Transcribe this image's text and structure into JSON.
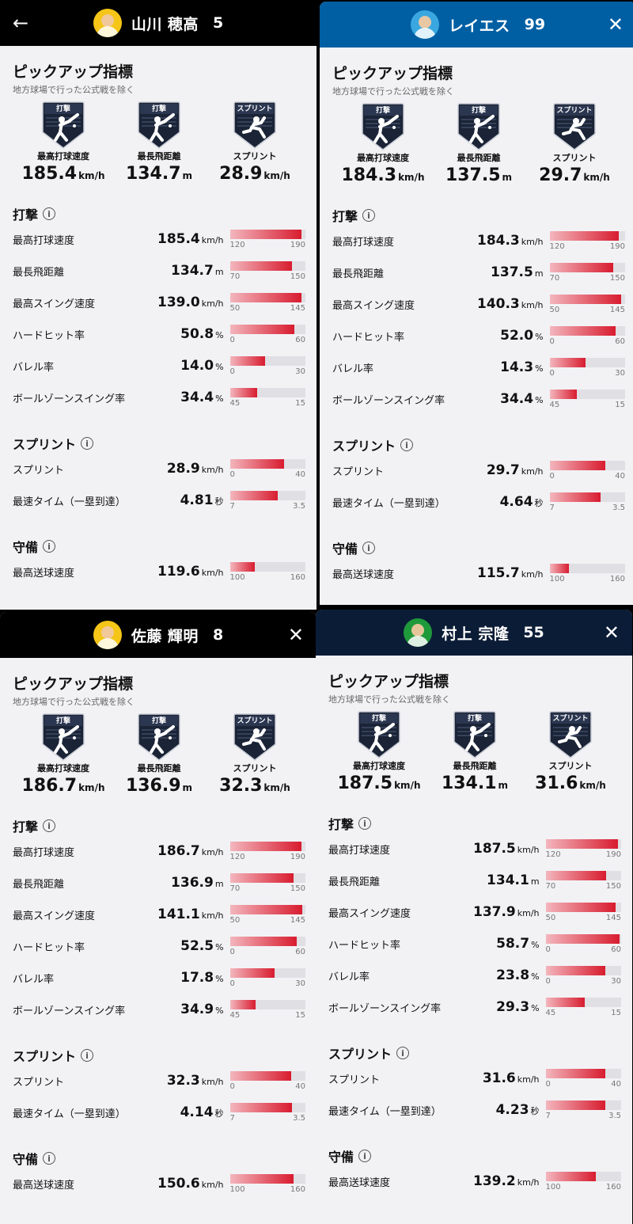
{
  "panels": [
    {
      "id": "p1",
      "header_bg": "#000000",
      "avatar_bg": "#f5c518",
      "left_icon": "←",
      "right_icon": "",
      "player_name": "山川 穂高",
      "player_number": "5",
      "pickup_title": "ピックアップ指標",
      "pickup_note": "地方球場で行った公式戦を除く",
      "pickups": [
        {
          "label": "最高打球速度",
          "value": "185.4",
          "unit": "km/h",
          "badge": "打撃",
          "icon": "batting-badge-icon"
        },
        {
          "label": "最長飛距離",
          "value": "134.7",
          "unit": "m",
          "badge": "打撃",
          "icon": "batting-badge-icon"
        },
        {
          "label": "スプリント",
          "value": "28.9",
          "unit": "km/h",
          "badge": "スプリント",
          "icon": "sprint-badge-icon"
        }
      ],
      "categories": [
        {
          "title": "打撃",
          "metrics": [
            {
              "label": "最高打球速度",
              "value": "185.4",
              "unit": "km/h",
              "min": "120",
              "max": "190",
              "fill": 0.95
            },
            {
              "label": "最長飛距離",
              "value": "134.7",
              "unit": "m",
              "min": "70",
              "max": "150",
              "fill": 0.82
            },
            {
              "label": "最高スイング速度",
              "value": "139.0",
              "unit": "km/h",
              "min": "50",
              "max": "145",
              "fill": 0.95
            },
            {
              "label": "ハードヒット率",
              "value": "50.8",
              "unit": "%",
              "min": "0",
              "max": "60",
              "fill": 0.85
            },
            {
              "label": "バレル率",
              "value": "14.0",
              "unit": "%",
              "min": "0",
              "max": "30",
              "fill": 0.47
            },
            {
              "label": "ボールゾーンスイング率",
              "value": "34.4",
              "unit": "%",
              "min": "45",
              "max": "15",
              "fill": 0.36
            }
          ]
        },
        {
          "title": "スプリント",
          "metrics": [
            {
              "label": "スプリント",
              "value": "28.9",
              "unit": "km/h",
              "min": "0",
              "max": "40",
              "fill": 0.72
            },
            {
              "label": "最速タイム（一塁到達）",
              "value": "4.81",
              "unit": "秒",
              "min": "7",
              "max": "3.5",
              "fill": 0.63
            }
          ]
        },
        {
          "title": "守備",
          "metrics": [
            {
              "label": "最高送球速度",
              "value": "119.6",
              "unit": "km/h",
              "min": "100",
              "max": "160",
              "fill": 0.33
            }
          ]
        }
      ]
    },
    {
      "id": "p2",
      "header_bg": "#005fa3",
      "avatar_bg": "#3aa7e0",
      "left_icon": "",
      "right_icon": "✕",
      "player_name": "レイエス",
      "player_number": "99",
      "pickup_title": "ピックアップ指標",
      "pickup_note": "地方球場で行った公式戦を除く",
      "pickups": [
        {
          "label": "最高打球速度",
          "value": "184.3",
          "unit": "km/h",
          "badge": "打撃",
          "icon": "batting-badge-icon"
        },
        {
          "label": "最長飛距離",
          "value": "137.5",
          "unit": "m",
          "badge": "打撃",
          "icon": "batting-badge-icon"
        },
        {
          "label": "スプリント",
          "value": "29.7",
          "unit": "km/h",
          "badge": "スプリント",
          "icon": "sprint-badge-icon"
        }
      ],
      "categories": [
        {
          "title": "打撃",
          "metrics": [
            {
              "label": "最高打球速度",
              "value": "184.3",
              "unit": "km/h",
              "min": "120",
              "max": "190",
              "fill": 0.92
            },
            {
              "label": "最長飛距離",
              "value": "137.5",
              "unit": "m",
              "min": "70",
              "max": "150",
              "fill": 0.84
            },
            {
              "label": "最高スイング速度",
              "value": "140.3",
              "unit": "km/h",
              "min": "50",
              "max": "145",
              "fill": 0.95
            },
            {
              "label": "ハードヒット率",
              "value": "52.0",
              "unit": "%",
              "min": "0",
              "max": "60",
              "fill": 0.87
            },
            {
              "label": "バレル率",
              "value": "14.3",
              "unit": "%",
              "min": "0",
              "max": "30",
              "fill": 0.48
            },
            {
              "label": "ボールゾーンスイング率",
              "value": "34.4",
              "unit": "%",
              "min": "45",
              "max": "15",
              "fill": 0.36
            }
          ]
        },
        {
          "title": "スプリント",
          "metrics": [
            {
              "label": "スプリント",
              "value": "29.7",
              "unit": "km/h",
              "min": "0",
              "max": "40",
              "fill": 0.74
            },
            {
              "label": "最速タイム（一塁到達）",
              "value": "4.64",
              "unit": "秒",
              "min": "7",
              "max": "3.5",
              "fill": 0.68
            }
          ]
        },
        {
          "title": "守備",
          "metrics": [
            {
              "label": "最高送球速度",
              "value": "115.7",
              "unit": "km/h",
              "min": "100",
              "max": "160",
              "fill": 0.26
            }
          ]
        }
      ]
    },
    {
      "id": "p3",
      "header_bg": "#000000",
      "avatar_bg": "#f5c518",
      "left_icon": "",
      "right_icon": "✕",
      "player_name": "佐藤 輝明",
      "player_number": "8",
      "pickup_title": "ピックアップ指標",
      "pickup_note": "地方球場で行った公式戦を除く",
      "pickups": [
        {
          "label": "最高打球速度",
          "value": "186.7",
          "unit": "km/h",
          "badge": "打撃",
          "icon": "batting-badge-icon"
        },
        {
          "label": "最長飛距離",
          "value": "136.9",
          "unit": "m",
          "badge": "打撃",
          "icon": "batting-badge-icon"
        },
        {
          "label": "スプリント",
          "value": "32.3",
          "unit": "km/h",
          "badge": "スプリント",
          "icon": "sprint-badge-icon"
        }
      ],
      "categories": [
        {
          "title": "打撃",
          "metrics": [
            {
              "label": "最高打球速度",
              "value": "186.7",
              "unit": "km/h",
              "min": "120",
              "max": "190",
              "fill": 0.95
            },
            {
              "label": "最長飛距離",
              "value": "136.9",
              "unit": "m",
              "min": "70",
              "max": "150",
              "fill": 0.84
            },
            {
              "label": "最高スイング速度",
              "value": "141.1",
              "unit": "km/h",
              "min": "50",
              "max": "145",
              "fill": 0.96
            },
            {
              "label": "ハードヒット率",
              "value": "52.5",
              "unit": "%",
              "min": "0",
              "max": "60",
              "fill": 0.88
            },
            {
              "label": "バレル率",
              "value": "17.8",
              "unit": "%",
              "min": "0",
              "max": "30",
              "fill": 0.59
            },
            {
              "label": "ボールゾーンスイング率",
              "value": "34.9",
              "unit": "%",
              "min": "45",
              "max": "15",
              "fill": 0.34
            }
          ]
        },
        {
          "title": "スプリント",
          "metrics": [
            {
              "label": "スプリント",
              "value": "32.3",
              "unit": "km/h",
              "min": "0",
              "max": "40",
              "fill": 0.81
            },
            {
              "label": "最速タイム（一塁到達）",
              "value": "4.14",
              "unit": "秒",
              "min": "7",
              "max": "3.5",
              "fill": 0.82
            }
          ]
        },
        {
          "title": "守備",
          "metrics": [
            {
              "label": "最高送球速度",
              "value": "150.6",
              "unit": "km/h",
              "min": "100",
              "max": "160",
              "fill": 0.84
            }
          ]
        }
      ]
    },
    {
      "id": "p4",
      "header_bg": "#0b1c36",
      "avatar_bg": "#1f9a3a",
      "left_icon": "",
      "right_icon": "✕",
      "player_name": "村上 宗隆",
      "player_number": "55",
      "pickup_title": "ピックアップ指標",
      "pickup_note": "地方球場で行った公式戦を除く",
      "pickups": [
        {
          "label": "最高打球速度",
          "value": "187.5",
          "unit": "km/h",
          "badge": "打撃",
          "icon": "batting-badge-icon"
        },
        {
          "label": "最長飛距離",
          "value": "134.1",
          "unit": "m",
          "badge": "打撃",
          "icon": "batting-badge-icon"
        },
        {
          "label": "スプリント",
          "value": "31.6",
          "unit": "km/h",
          "badge": "スプリント",
          "icon": "sprint-badge-icon"
        }
      ],
      "categories": [
        {
          "title": "打撃",
          "metrics": [
            {
              "label": "最高打球速度",
              "value": "187.5",
              "unit": "km/h",
              "min": "120",
              "max": "190",
              "fill": 0.96
            },
            {
              "label": "最長飛距離",
              "value": "134.1",
              "unit": "m",
              "min": "70",
              "max": "150",
              "fill": 0.8
            },
            {
              "label": "最高スイング速度",
              "value": "137.9",
              "unit": "km/h",
              "min": "50",
              "max": "145",
              "fill": 0.93
            },
            {
              "label": "ハードヒット率",
              "value": "58.7",
              "unit": "%",
              "min": "0",
              "max": "60",
              "fill": 0.98
            },
            {
              "label": "バレル率",
              "value": "23.8",
              "unit": "%",
              "min": "0",
              "max": "30",
              "fill": 0.79
            },
            {
              "label": "ボールゾーンスイング率",
              "value": "29.3",
              "unit": "%",
              "min": "45",
              "max": "15",
              "fill": 0.52
            }
          ]
        },
        {
          "title": "スプリント",
          "metrics": [
            {
              "label": "スプリント",
              "value": "31.6",
              "unit": "km/h",
              "min": "0",
              "max": "40",
              "fill": 0.79
            },
            {
              "label": "最速タイム（一塁到達）",
              "value": "4.23",
              "unit": "秒",
              "min": "7",
              "max": "3.5",
              "fill": 0.79
            }
          ]
        },
        {
          "title": "守備",
          "metrics": [
            {
              "label": "最高送球速度",
              "value": "139.2",
              "unit": "km/h",
              "min": "100",
              "max": "160",
              "fill": 0.66
            }
          ]
        }
      ]
    }
  ]
}
